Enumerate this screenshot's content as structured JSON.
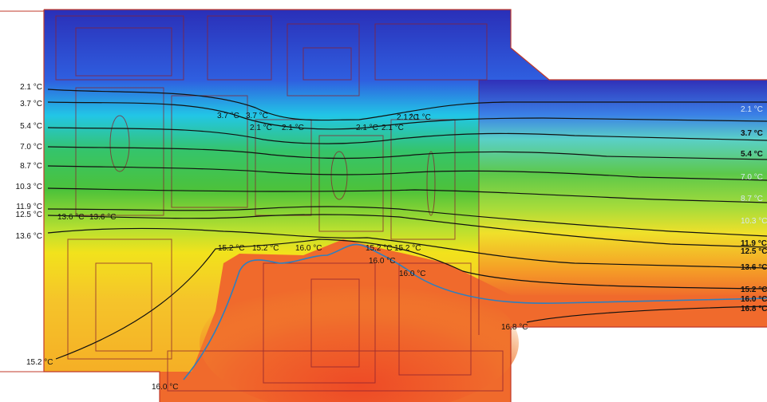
{
  "chart_data": {
    "type": "heatmap",
    "title": "",
    "xlabel": "",
    "ylabel": "",
    "grid": false,
    "legend": "none",
    "colors": {
      "cold": "#2a2fb8",
      "blue": "#2f7fe8",
      "cyan": "#22c6e6",
      "green": "#4cc23a",
      "yellow": "#f2e21c",
      "orange": "#f5a624",
      "red_orange": "#f0642a",
      "red": "#e8261f",
      "isotherm": "#111111",
      "isotherm_16": "#2e7fbf",
      "frame": "#c0392b"
    },
    "isotherms": [
      {
        "value": 2.1,
        "unit": "°C"
      },
      {
        "value": 3.7,
        "unit": "°C"
      },
      {
        "value": 5.4,
        "unit": "°C"
      },
      {
        "value": 7.0,
        "unit": "°C"
      },
      {
        "value": 8.7,
        "unit": "°C"
      },
      {
        "value": 10.3,
        "unit": "°C"
      },
      {
        "value": 11.9,
        "unit": "°C"
      },
      {
        "value": 12.5,
        "unit": "°C"
      },
      {
        "value": 13.6,
        "unit": "°C"
      },
      {
        "value": 15.2,
        "unit": "°C"
      },
      {
        "value": 16.0,
        "unit": "°C"
      },
      {
        "value": 16.8,
        "unit": "°C"
      }
    ],
    "labels": {
      "left": [
        "2.1 °C",
        "3.7 °C",
        "5.4 °C",
        "7.0 °C",
        "8.7 °C",
        "10.3 °C",
        "11.9 °C",
        "12.5 °C",
        "13.6 °C"
      ],
      "left_inner": [
        "13.6 °C",
        "13.6 °C"
      ],
      "bottom_left": "15.2 °C",
      "bottom_center": "16.0 °C",
      "mid_upper": [
        "3.7 °C",
        "3.7 °C",
        "2.1 °C",
        "2.1 °C",
        "2.1 °C",
        "2.1 °C",
        "2.1 °C",
        "2.1 °C"
      ],
      "mid_lower": [
        "15.2 °C",
        "15.2 °C",
        "16.0 °C",
        "15.2 °C",
        "15.2 °C",
        "16.0 °C",
        "16.0 °C"
      ],
      "right": [
        "2.1 °C",
        "3.7 °C",
        "5.4 °C",
        "7.0 °C",
        "8.7 °C",
        "10.3 °C",
        "11.9 °C",
        "12.5 °C",
        "13.6 °C",
        "15.2 °C",
        "16.0 °C",
        "16.8 °C"
      ],
      "right_inner": "16.8 °C"
    }
  }
}
